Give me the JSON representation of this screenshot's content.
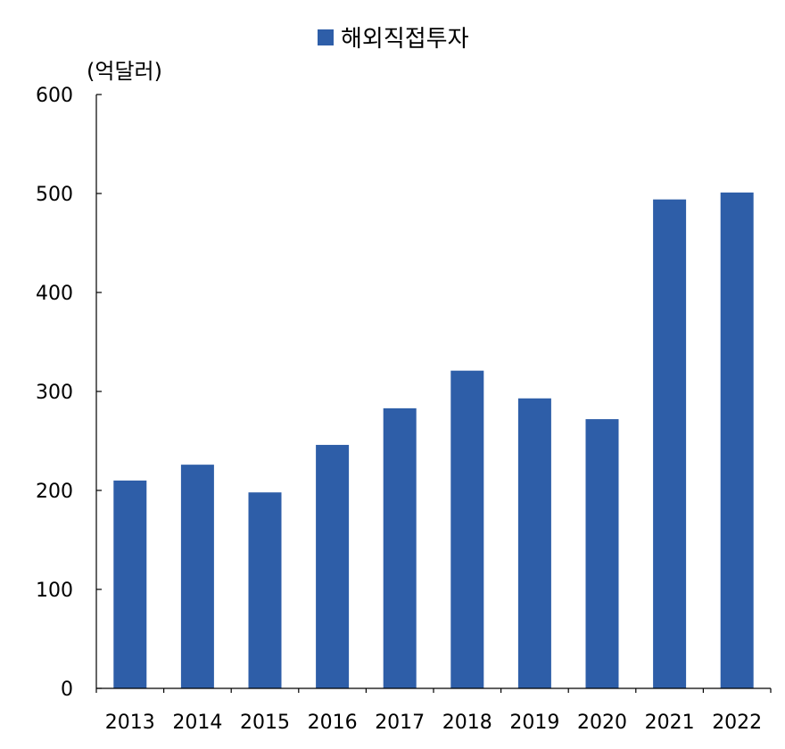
{
  "chart_data": {
    "type": "bar",
    "categories": [
      "2013",
      "2014",
      "2015",
      "2016",
      "2017",
      "2018",
      "2019",
      "2020",
      "2021",
      "2022"
    ],
    "series": [
      {
        "name": "해외직접투자",
        "values": [
          210,
          226,
          198,
          246,
          283,
          321,
          293,
          272,
          494,
          501
        ],
        "color": "#2e5ea8"
      }
    ],
    "y_unit_label": "(억달러)",
    "ylim": [
      0,
      600
    ],
    "yticks": [
      0,
      100,
      200,
      300,
      400,
      500,
      600
    ],
    "grid": false,
    "legend_position": "top-center"
  }
}
